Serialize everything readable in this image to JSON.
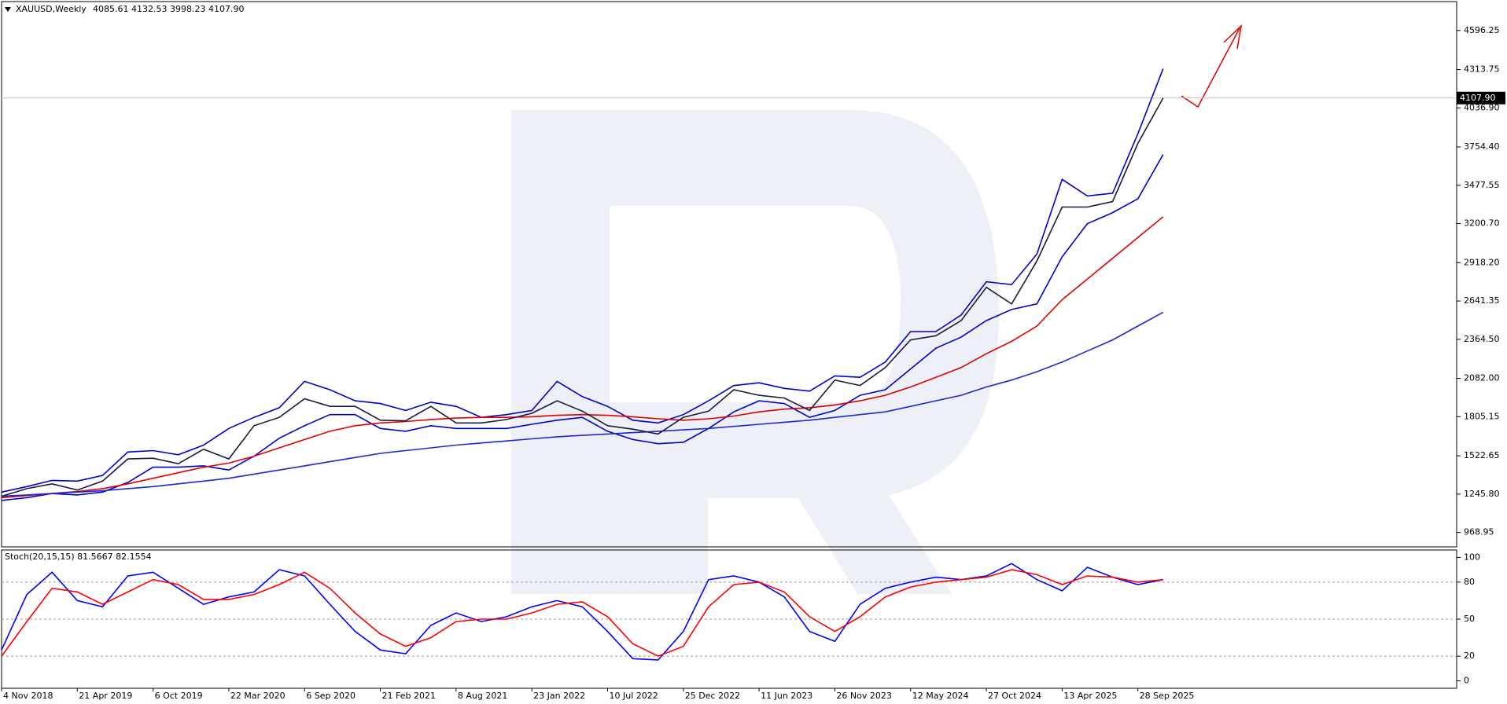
{
  "chart_data": [
    {
      "type": "line",
      "title": "XAUUSD,Weekly",
      "subtitle": "4085.61 4132.53 3998.23 4107.90",
      "x": [
        0,
        8,
        16,
        24,
        32,
        40,
        48,
        56,
        64,
        72,
        80,
        88,
        96,
        104,
        112,
        120,
        128,
        136,
        144,
        152,
        160,
        168,
        176,
        184,
        192,
        200,
        208,
        216,
        224,
        232,
        240,
        248,
        256,
        264,
        272,
        280,
        288,
        296,
        304,
        312,
        320,
        328,
        336,
        344,
        352,
        360,
        368
      ],
      "xlim": [
        0,
        461
      ],
      "ylim": [
        864.5,
        4805
      ],
      "yticks": [
        968.95,
        {
          "value": 1245.8,
          "label": "1245.80"
        },
        1522.65,
        1805.15,
        {
          "value": 2082,
          "label": "2082.00"
        },
        {
          "value": 2364.5,
          "label": "2364.50"
        },
        2641.35,
        {
          "value": 2918.2,
          "label": "2918.20"
        },
        {
          "value": 3200.7,
          "label": "3200.70"
        },
        3477.55,
        {
          "value": 3754.4,
          "label": "3754.40"
        },
        {
          "value": 4036.9,
          "label": "4036.90"
        },
        4313.75,
        4596.25
      ],
      "current": {
        "value": 4107.9,
        "label": "4107.90"
      },
      "series": [
        {
          "color": "#0000cd",
          "values": [
            1260,
            1300,
            1345,
            1340,
            1380,
            1550,
            1560,
            1530,
            1600,
            1720,
            1800,
            1870,
            2060,
            2000,
            1920,
            1900,
            1850,
            1910,
            1880,
            1800,
            1820,
            1850,
            2060,
            1950,
            1880,
            1780,
            1760,
            1820,
            1920,
            2030,
            2050,
            2010,
            1990,
            2100,
            2090,
            2200,
            2420,
            2420,
            2540,
            2780,
            2760,
            2980,
            3520,
            3400,
            3420,
            3850,
            4320
          ]
        },
        {
          "color": "#0000cd",
          "values": [
            1200,
            1220,
            1250,
            1240,
            1260,
            1330,
            1440,
            1440,
            1450,
            1420,
            1520,
            1650,
            1740,
            1820,
            1820,
            1720,
            1700,
            1740,
            1720,
            1720,
            1720,
            1750,
            1780,
            1800,
            1700,
            1640,
            1610,
            1620,
            1720,
            1840,
            1920,
            1900,
            1800,
            1850,
            1960,
            2000,
            2150,
            2300,
            2380,
            2500,
            2580,
            2620,
            2960,
            3200,
            3280,
            3380,
            3700
          ]
        },
        {
          "color": "#e00000",
          "values": [
            1220,
            1235,
            1250,
            1265,
            1285,
            1320,
            1360,
            1400,
            1440,
            1470,
            1520,
            1580,
            1640,
            1700,
            1740,
            1760,
            1770,
            1785,
            1795,
            1800,
            1800,
            1805,
            1815,
            1820,
            1815,
            1805,
            1790,
            1780,
            1790,
            1810,
            1840,
            1860,
            1870,
            1890,
            1920,
            1960,
            2020,
            2090,
            2160,
            2260,
            2350,
            2460,
            2650,
            2800,
            2950,
            3100,
            3250
          ]
        },
        {
          "color": "#1e28d0",
          "values": [
            1230,
            1240,
            1250,
            1260,
            1270,
            1285,
            1300,
            1320,
            1340,
            1360,
            1390,
            1420,
            1450,
            1480,
            1510,
            1540,
            1560,
            1580,
            1600,
            1615,
            1630,
            1645,
            1660,
            1670,
            1680,
            1690,
            1700,
            1710,
            1720,
            1735,
            1750,
            1765,
            1780,
            1800,
            1820,
            1840,
            1880,
            1920,
            1960,
            2020,
            2070,
            2130,
            2200,
            2280,
            2360,
            2460,
            2560
          ]
        },
        {
          "color": "#1a1a3a",
          "values": [
            1230,
            1285,
            1320,
            1275,
            1340,
            1500,
            1505,
            1465,
            1570,
            1500,
            1740,
            1800,
            1935,
            1880,
            1880,
            1780,
            1775,
            1880,
            1760,
            1760,
            1785,
            1830,
            1920,
            1845,
            1740,
            1715,
            1680,
            1800,
            1845,
            2000,
            1960,
            1940,
            1850,
            2070,
            2030,
            2160,
            2360,
            2390,
            2500,
            2740,
            2620,
            2930,
            3320,
            3320,
            3360,
            3780,
            4108
          ]
        }
      ]
    },
    {
      "type": "line",
      "title": "Stoch(20,15,15) 81.5667 82.1554",
      "x": [
        0,
        8,
        16,
        24,
        32,
        40,
        48,
        56,
        64,
        72,
        80,
        88,
        96,
        104,
        112,
        120,
        128,
        136,
        144,
        152,
        160,
        168,
        176,
        184,
        192,
        200,
        208,
        216,
        224,
        232,
        240,
        248,
        256,
        264,
        272,
        280,
        288,
        296,
        304,
        312,
        320,
        328,
        336,
        344,
        352,
        360,
        368
      ],
      "xlim": [
        0,
        461
      ],
      "ylim": [
        -6,
        106
      ],
      "yticks": [
        0,
        20,
        50,
        80,
        100
      ],
      "levels": [
        20,
        50,
        80
      ],
      "xticks": [
        {
          "value": 0,
          "label": "4 Nov 2018"
        },
        {
          "value": 24,
          "label": "21 Apr 2019"
        },
        {
          "value": 48,
          "label": "6 Oct 2019"
        },
        {
          "value": 72,
          "label": "22 Mar 2020"
        },
        {
          "value": 96,
          "label": "6 Sep 2020"
        },
        {
          "value": 120,
          "label": "21 Feb 2021"
        },
        {
          "value": 144,
          "label": "8 Aug 2021"
        },
        {
          "value": 168,
          "label": "23 Jan 2022"
        },
        {
          "value": 192,
          "label": "10 Jul 2022"
        },
        {
          "value": 216,
          "label": "25 Dec 2022"
        },
        {
          "value": 240,
          "label": "11 Jun 2023"
        },
        {
          "value": 264,
          "label": "26 Nov 2023"
        },
        {
          "value": 288,
          "label": "12 May 2024"
        },
        {
          "value": 312,
          "label": "27 Oct 2024"
        },
        {
          "value": 336,
          "label": "13 Apr 2025"
        },
        {
          "value": 360,
          "label": "28 Sep 2025"
        }
      ],
      "series": [
        {
          "color": "#0000ff",
          "values": [
            25,
            70,
            88,
            65,
            60,
            85,
            88,
            75,
            62,
            68,
            72,
            90,
            85,
            62,
            40,
            25,
            22,
            45,
            55,
            48,
            52,
            60,
            65,
            60,
            40,
            18,
            17,
            40,
            82,
            85,
            80,
            68,
            40,
            32,
            62,
            75,
            80,
            84,
            82,
            85,
            95,
            82,
            73,
            92,
            84,
            78,
            82
          ]
        },
        {
          "color": "#ff0000",
          "values": [
            20,
            48,
            75,
            72,
            62,
            72,
            82,
            78,
            66,
            66,
            70,
            78,
            88,
            75,
            55,
            38,
            28,
            35,
            48,
            50,
            50,
            55,
            62,
            64,
            52,
            30,
            20,
            28,
            60,
            78,
            80,
            72,
            52,
            40,
            52,
            68,
            76,
            80,
            82,
            84,
            90,
            86,
            78,
            85,
            84,
            80,
            82
          ]
        }
      ]
    }
  ]
}
